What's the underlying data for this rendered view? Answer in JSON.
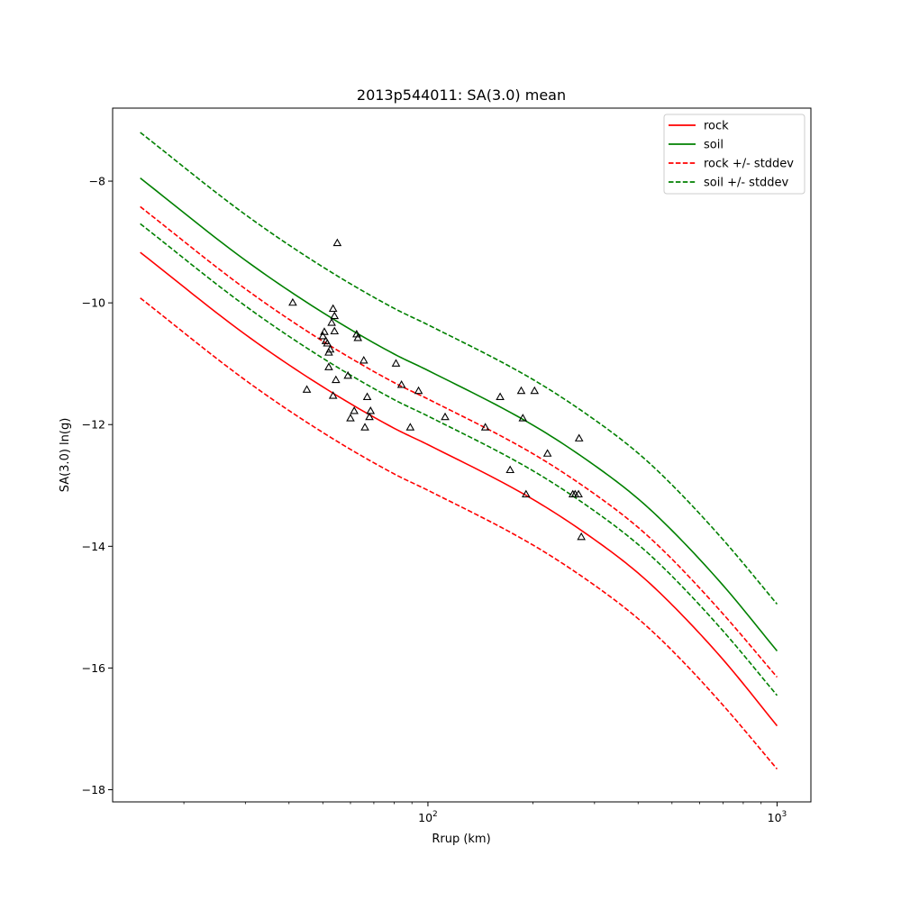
{
  "chart_data": {
    "type": "line",
    "title": "2013p544011: SA(3.0) mean",
    "xlabel": "Rrup (km)",
    "ylabel": "SA(3.0) ln(g)",
    "xscale": "log",
    "xlim": [
      12.5,
      1250
    ],
    "ylim": [
      -18.2,
      -6.8
    ],
    "xticks": [
      {
        "value": 100,
        "base": "10",
        "exp": "2"
      },
      {
        "value": 1000,
        "base": "10",
        "exp": "3"
      }
    ],
    "yticks": [
      -18,
      -16,
      -14,
      -12,
      -10,
      -8
    ],
    "ytick_labels": [
      "−18",
      "−16",
      "−14",
      "−12",
      "−10",
      "−8"
    ],
    "grid": false,
    "legend_position": "top-right",
    "legend": [
      {
        "label": "rock",
        "color": "#ff0000",
        "dash": "solid"
      },
      {
        "label": "soil",
        "color": "#008000",
        "dash": "solid"
      },
      {
        "label": "rock +/- stddev",
        "color": "#ff0000",
        "dash": "dashed"
      },
      {
        "label": "soil +/- stddev",
        "color": "#008000",
        "dash": "dashed"
      }
    ],
    "series": [
      {
        "name": "rock",
        "color": "#ff0000",
        "dash": "solid",
        "points": [
          [
            15,
            -9.17
          ],
          [
            30,
            -10.52
          ],
          [
            50,
            -11.38
          ],
          [
            80,
            -12.06
          ],
          [
            100,
            -12.33
          ],
          [
            200,
            -13.23
          ],
          [
            300,
            -13.89
          ],
          [
            400,
            -14.44
          ],
          [
            500,
            -14.96
          ],
          [
            700,
            -15.86
          ],
          [
            1000,
            -16.95
          ]
        ]
      },
      {
        "name": "soil",
        "color": "#008000",
        "dash": "solid",
        "points": [
          [
            15,
            -7.95
          ],
          [
            30,
            -9.3
          ],
          [
            50,
            -10.16
          ],
          [
            80,
            -10.84
          ],
          [
            100,
            -11.11
          ],
          [
            200,
            -12.01
          ],
          [
            300,
            -12.67
          ],
          [
            400,
            -13.22
          ],
          [
            500,
            -13.74
          ],
          [
            700,
            -14.64
          ],
          [
            1000,
            -15.72
          ]
        ]
      },
      {
        "name": "rock +/- stddev",
        "color": "#ff0000",
        "dash": "dashed",
        "points": [
          [
            15,
            -8.42
          ],
          [
            30,
            -9.77
          ],
          [
            50,
            -10.63
          ],
          [
            80,
            -11.31
          ],
          [
            100,
            -11.58
          ],
          [
            200,
            -12.48
          ],
          [
            300,
            -13.14
          ],
          [
            400,
            -13.69
          ],
          [
            500,
            -14.21
          ],
          [
            700,
            -15.11
          ],
          [
            1000,
            -16.15
          ]
        ]
      },
      {
        "name": "rock +/- stddev",
        "color": "#ff0000",
        "dash": "dashed",
        "points": [
          [
            15,
            -9.92
          ],
          [
            30,
            -11.27
          ],
          [
            50,
            -12.13
          ],
          [
            80,
            -12.81
          ],
          [
            100,
            -13.08
          ],
          [
            200,
            -13.98
          ],
          [
            300,
            -14.64
          ],
          [
            400,
            -15.19
          ],
          [
            500,
            -15.71
          ],
          [
            700,
            -16.61
          ],
          [
            1000,
            -17.66
          ]
        ]
      },
      {
        "name": "soil +/- stddev",
        "color": "#008000",
        "dash": "dashed",
        "points": [
          [
            15,
            -7.2
          ],
          [
            30,
            -8.55
          ],
          [
            50,
            -9.41
          ],
          [
            80,
            -10.09
          ],
          [
            100,
            -10.36
          ],
          [
            200,
            -11.26
          ],
          [
            300,
            -11.92
          ],
          [
            400,
            -12.47
          ],
          [
            500,
            -12.99
          ],
          [
            700,
            -13.89
          ],
          [
            1000,
            -14.95
          ]
        ]
      },
      {
        "name": "soil +/- stddev",
        "color": "#008000",
        "dash": "dashed",
        "points": [
          [
            15,
            -8.7
          ],
          [
            30,
            -10.05
          ],
          [
            50,
            -10.91
          ],
          [
            80,
            -11.59
          ],
          [
            100,
            -11.86
          ],
          [
            200,
            -12.76
          ],
          [
            300,
            -13.42
          ],
          [
            400,
            -13.97
          ],
          [
            500,
            -14.49
          ],
          [
            700,
            -15.39
          ],
          [
            1000,
            -16.45
          ]
        ]
      }
    ],
    "observations": {
      "marker": "triangle",
      "points": [
        [
          41,
          -10.0
        ],
        [
          45,
          -11.43
        ],
        [
          50,
          -10.55
        ],
        [
          50.5,
          -10.48
        ],
        [
          51,
          -10.63
        ],
        [
          51.5,
          -10.67
        ],
        [
          52,
          -10.82
        ],
        [
          52,
          -11.06
        ],
        [
          52.5,
          -10.77
        ],
        [
          53,
          -10.33
        ],
        [
          53.5,
          -10.1
        ],
        [
          53.5,
          -11.53
        ],
        [
          54,
          -10.47
        ],
        [
          54,
          -10.22
        ],
        [
          54.5,
          -11.27
        ],
        [
          55,
          -9.02
        ],
        [
          59,
          -11.2
        ],
        [
          60,
          -11.9
        ],
        [
          61.5,
          -11.78
        ],
        [
          62.5,
          -10.52
        ],
        [
          63,
          -10.58
        ],
        [
          65.5,
          -10.95
        ],
        [
          66,
          -12.05
        ],
        [
          67,
          -11.55
        ],
        [
          68,
          -11.88
        ],
        [
          68.5,
          -11.78
        ],
        [
          81,
          -11.0
        ],
        [
          84,
          -11.35
        ],
        [
          89,
          -12.05
        ],
        [
          94,
          -11.45
        ],
        [
          112,
          -11.88
        ],
        [
          146,
          -12.05
        ],
        [
          161,
          -11.55
        ],
        [
          172,
          -12.75
        ],
        [
          185,
          -11.45
        ],
        [
          187,
          -11.9
        ],
        [
          191,
          -13.15
        ],
        [
          202,
          -11.45
        ],
        [
          220,
          -12.48
        ],
        [
          260,
          -13.15
        ],
        [
          264,
          -13.15
        ],
        [
          270,
          -13.15
        ],
        [
          271,
          -12.23
        ],
        [
          275,
          -13.85
        ]
      ]
    }
  }
}
